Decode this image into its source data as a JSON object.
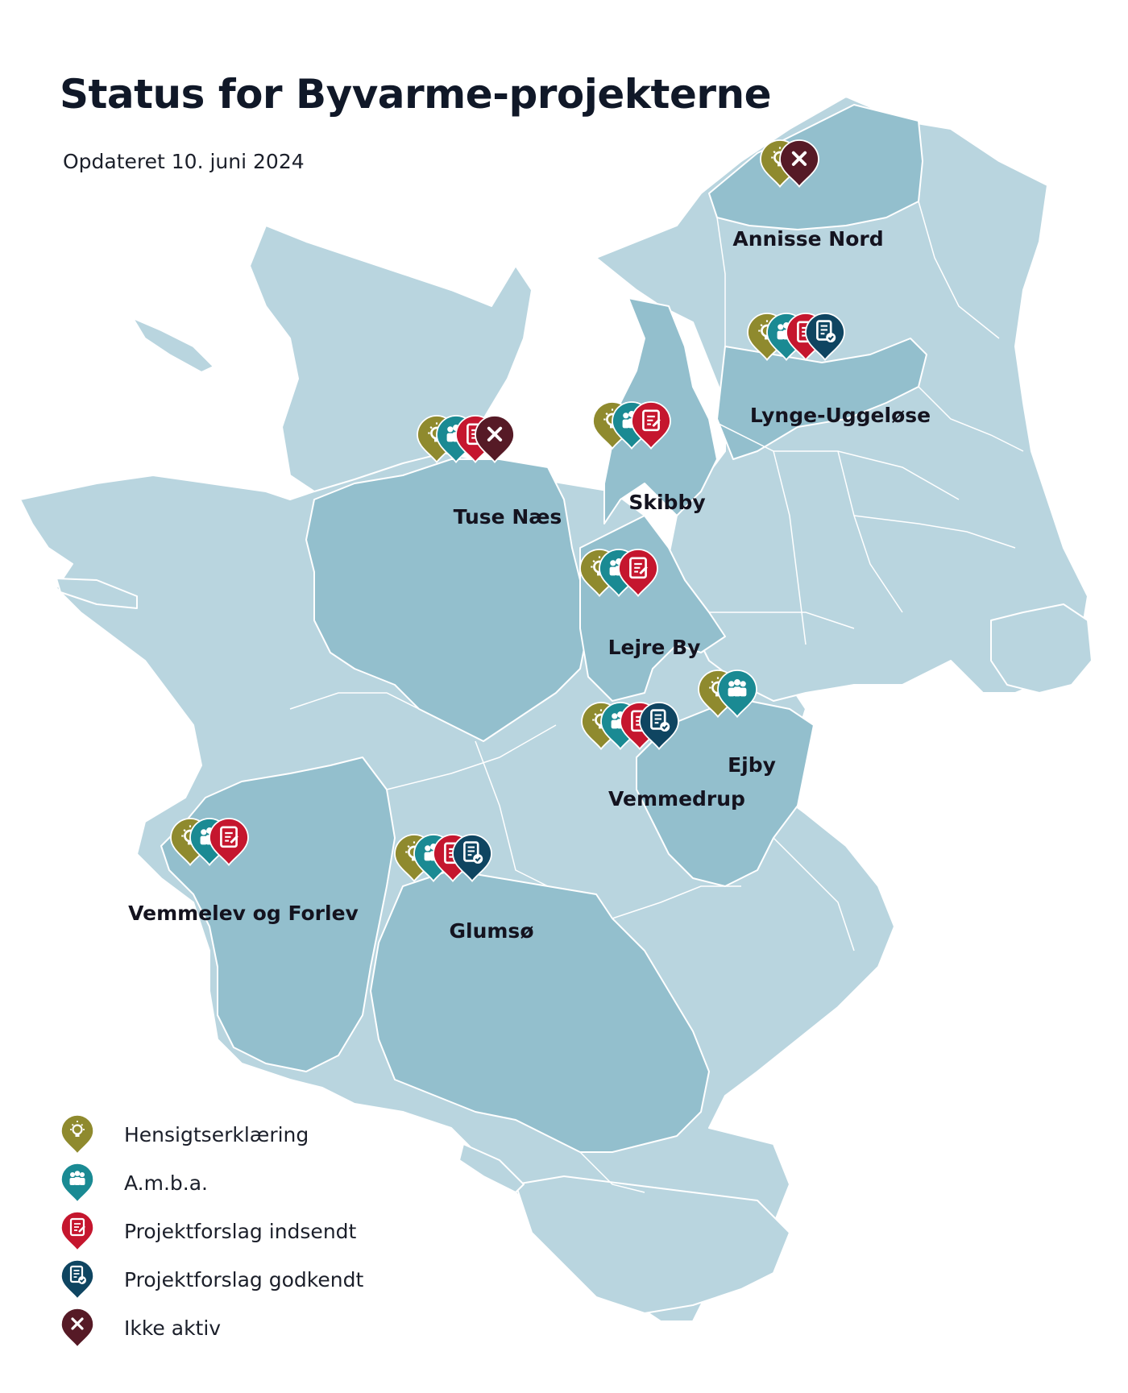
{
  "title": "Status for Byvarme-projekterne",
  "subtitle": "Opdateret 10. juni 2024",
  "colors": {
    "sea": "#ffffff",
    "land_light": "#b9d5df",
    "land_dark": "#93bfcd",
    "hensigt": "#8f8a2e",
    "amba": "#1a8a93",
    "indsendt": "#c5162e",
    "godkendt": "#0f4561",
    "ikke_aktiv": "#561a26"
  },
  "legend": [
    {
      "status": "hensigt",
      "icon": "lightbulb-icon",
      "label": "Hensigtserklæring"
    },
    {
      "status": "amba",
      "icon": "people-icon",
      "label": "A.m.b.a."
    },
    {
      "status": "indsendt",
      "icon": "document-submitted-icon",
      "label": "Projektforslag indsendt"
    },
    {
      "status": "godkendt",
      "icon": "document-approved-icon",
      "label": "Projektforslag godkendt"
    },
    {
      "status": "ikke_aktiv",
      "icon": "cross-icon",
      "label": "Ikke aktiv"
    }
  ],
  "projects": [
    {
      "name": "Annisse Nord",
      "statuses": [
        "hensigt",
        "ikke_aktiv"
      ]
    },
    {
      "name": "Lynge-Uggeløse",
      "statuses": [
        "hensigt",
        "amba",
        "indsendt",
        "godkendt"
      ]
    },
    {
      "name": "Skibby",
      "statuses": [
        "hensigt",
        "amba",
        "indsendt"
      ]
    },
    {
      "name": "Tuse Næs",
      "statuses": [
        "hensigt",
        "amba",
        "indsendt",
        "ikke_aktiv"
      ]
    },
    {
      "name": "Lejre By",
      "statuses": [
        "hensigt",
        "amba",
        "indsendt"
      ]
    },
    {
      "name": "Ejby",
      "statuses": [
        "hensigt",
        "amba"
      ]
    },
    {
      "name": "Vemmedrup",
      "statuses": [
        "hensigt",
        "amba",
        "indsendt",
        "godkendt"
      ]
    },
    {
      "name": "Vemmelev og Forlev",
      "statuses": [
        "hensigt",
        "amba",
        "indsendt"
      ]
    },
    {
      "name": "Glumsø",
      "statuses": [
        "hensigt",
        "amba",
        "indsendt",
        "godkendt"
      ]
    }
  ]
}
